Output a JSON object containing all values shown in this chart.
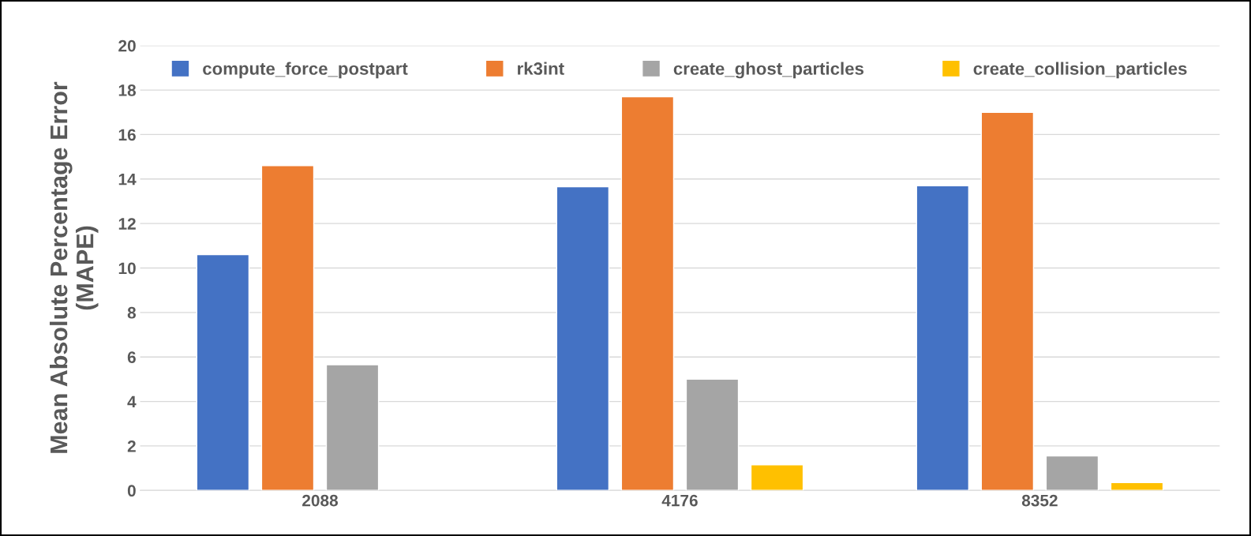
{
  "chart_data": {
    "type": "bar",
    "ylabel": "Mean Absolute Percentage Error\n(MAPE)",
    "categories": [
      "2088",
      "4176",
      "8352"
    ],
    "series": [
      {
        "name": "compute_force_postpart",
        "color": "#4472c4",
        "values": [
          10.6,
          13.65,
          13.7
        ]
      },
      {
        "name": "rk3int",
        "color": "#ed7d31",
        "values": [
          14.6,
          17.7,
          17.0
        ]
      },
      {
        "name": "create_ghost_particles",
        "color": "#a5a5a5",
        "values": [
          5.65,
          5.0,
          1.55
        ]
      },
      {
        "name": "create_collision_particles",
        "color": "#ffc000",
        "values": [
          null,
          1.15,
          0.35
        ]
      }
    ],
    "ylim": [
      0,
      20
    ],
    "yticks": [
      0,
      2,
      4,
      6,
      8,
      10,
      12,
      14,
      16,
      18,
      20
    ],
    "grid": "y",
    "legend": "top"
  }
}
